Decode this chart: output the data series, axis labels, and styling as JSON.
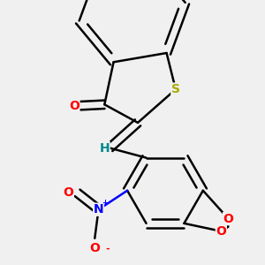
{
  "bg_color": "#f0f0f0",
  "bond_color": "#000000",
  "bond_lw": 1.8,
  "dbo": 0.055,
  "S_color": "#aaaa00",
  "O_color": "#ff0000",
  "N_color": "#0000ff",
  "H_color": "#008b8b",
  "font_size": 9.5,
  "xlim": [
    -1.6,
    1.9
  ],
  "ylim": [
    -1.9,
    1.6
  ]
}
